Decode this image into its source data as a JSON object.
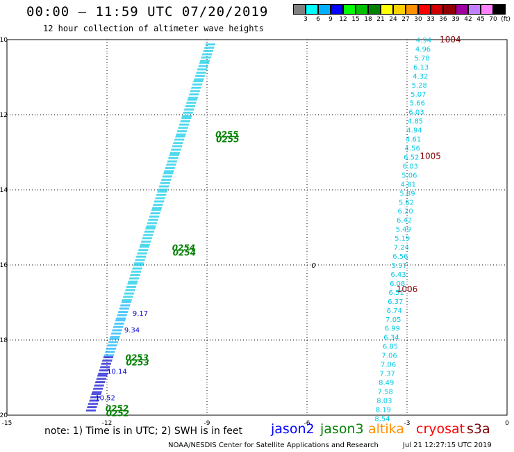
{
  "header": {
    "title": "00:00 — 11:59 UTC 07/20/2019",
    "subtitle": "12 hour collection of altimeter wave heights"
  },
  "legend": {
    "unit": "(ft)",
    "items": [
      {
        "label": "3",
        "color": "#808080"
      },
      {
        "label": "6",
        "color": "#00ffff"
      },
      {
        "label": "9",
        "color": "#00b0ff"
      },
      {
        "label": "12",
        "color": "#0000ff"
      },
      {
        "label": "15",
        "color": "#00ff00"
      },
      {
        "label": "18",
        "color": "#00c000"
      },
      {
        "label": "21",
        "color": "#008000"
      },
      {
        "label": "24",
        "color": "#ffff00"
      },
      {
        "label": "27",
        "color": "#ffd000"
      },
      {
        "label": "30",
        "color": "#ff9000"
      },
      {
        "label": "33",
        "color": "#ff0000"
      },
      {
        "label": "36",
        "color": "#d00000"
      },
      {
        "label": "39",
        "color": "#900000"
      },
      {
        "label": "42",
        "color": "#a000a0"
      },
      {
        "label": "45",
        "color": "#c080ff"
      },
      {
        "label": "70",
        "color": "#ff80ff"
      },
      {
        "label": "",
        "color": "#000000"
      }
    ]
  },
  "map": {
    "lon_range": [
      -15,
      0
    ],
    "lat_range": [
      -20,
      -10
    ],
    "lon_ticks": [
      "-15",
      "-12",
      "-9",
      "-6",
      "-3",
      "0"
    ],
    "lat_ticks": [
      "-10",
      "-12",
      "-14",
      "-16",
      "-18",
      "-20"
    ],
    "track_a": [
      {
        "lat": -10.1,
        "lon": -8.9
      },
      {
        "lat": -19.9,
        "lon": -12.5
      }
    ],
    "track_b_labels": [
      {
        "lat": -10.0,
        "lon": -2.5,
        "value": "4.94"
      },
      {
        "lat": -10.24,
        "lon": -2.52,
        "value": "4.96"
      },
      {
        "lat": -10.48,
        "lon": -2.55,
        "value": "5.78"
      },
      {
        "lat": -10.72,
        "lon": -2.58,
        "value": "6.13"
      },
      {
        "lat": -10.96,
        "lon": -2.6,
        "value": "4.32"
      },
      {
        "lat": -11.2,
        "lon": -2.63,
        "value": "5.28"
      },
      {
        "lat": -11.44,
        "lon": -2.66,
        "value": "5.07"
      },
      {
        "lat": -11.68,
        "lon": -2.69,
        "value": "5.66"
      },
      {
        "lat": -11.92,
        "lon": -2.72,
        "value": "6.03"
      },
      {
        "lat": -12.16,
        "lon": -2.75,
        "value": "4.85"
      },
      {
        "lat": -12.4,
        "lon": -2.78,
        "value": "4.94"
      },
      {
        "lat": -12.64,
        "lon": -2.81,
        "value": "4.61"
      },
      {
        "lat": -12.88,
        "lon": -2.84,
        "value": "4.56"
      },
      {
        "lat": -13.12,
        "lon": -2.87,
        "value": "6.52"
      },
      {
        "lat": -13.36,
        "lon": -2.9,
        "value": "6.03"
      },
      {
        "lat": -13.6,
        "lon": -2.93,
        "value": "5.06"
      },
      {
        "lat": -13.84,
        "lon": -2.96,
        "value": "4.81"
      },
      {
        "lat": -14.08,
        "lon": -2.99,
        "value": "5.89"
      },
      {
        "lat": -14.32,
        "lon": -3.02,
        "value": "5.62"
      },
      {
        "lat": -14.56,
        "lon": -3.05,
        "value": "6.20"
      },
      {
        "lat": -14.8,
        "lon": -3.08,
        "value": "6.42"
      },
      {
        "lat": -15.04,
        "lon": -3.11,
        "value": "5.49"
      },
      {
        "lat": -15.28,
        "lon": -3.14,
        "value": "5.19"
      },
      {
        "lat": -15.52,
        "lon": -3.17,
        "value": "7.24"
      },
      {
        "lat": -15.76,
        "lon": -3.2,
        "value": "6.56"
      },
      {
        "lat": -16.0,
        "lon": -3.23,
        "value": "5.97"
      },
      {
        "lat": -16.24,
        "lon": -3.26,
        "value": "6.43"
      },
      {
        "lat": -16.48,
        "lon": -3.29,
        "value": "6.08"
      },
      {
        "lat": -16.72,
        "lon": -3.32,
        "value": "6.51"
      },
      {
        "lat": -16.96,
        "lon": -3.35,
        "value": "6.37"
      },
      {
        "lat": -17.2,
        "lon": -3.38,
        "value": "6.74"
      },
      {
        "lat": -17.44,
        "lon": -3.41,
        "value": "7.05"
      },
      {
        "lat": -17.68,
        "lon": -3.44,
        "value": "6.99"
      },
      {
        "lat": -17.92,
        "lon": -3.47,
        "value": "6.34"
      },
      {
        "lat": -18.16,
        "lon": -3.5,
        "value": "6.85"
      },
      {
        "lat": -18.4,
        "lon": -3.53,
        "value": "7.06"
      },
      {
        "lat": -18.64,
        "lon": -3.56,
        "value": "7.06"
      },
      {
        "lat": -18.88,
        "lon": -3.59,
        "value": "7.37"
      },
      {
        "lat": -19.12,
        "lon": -3.62,
        "value": "8.49"
      },
      {
        "lat": -19.36,
        "lon": -3.65,
        "value": "7.58"
      },
      {
        "lat": -19.6,
        "lon": -3.68,
        "value": "8.03"
      },
      {
        "lat": -19.84,
        "lon": -3.71,
        "value": "8.19"
      },
      {
        "lat": -20.08,
        "lon": -3.74,
        "value": "8.54"
      }
    ],
    "track_b_color": "#00c8e6",
    "track_a_colors": [
      "#00c8e6",
      "#00b0ff",
      "#0000d0"
    ],
    "track_a_labels": [
      {
        "lat": -17.35,
        "lon": -11.0,
        "value": "9.17"
      },
      {
        "lat": -17.8,
        "lon": -11.25,
        "value": "9.34"
      },
      {
        "lat": -18.9,
        "lon": -11.7,
        "value": "10.14"
      },
      {
        "lat": -19.6,
        "lon": -12.05,
        "value": "10.52"
      }
    ],
    "time_labels": [
      {
        "lat": -12.6,
        "lon": -8.4,
        "value": "0255"
      },
      {
        "lat": -15.62,
        "lon": -9.7,
        "value": "0254"
      },
      {
        "lat": -18.55,
        "lon": -11.1,
        "value": "0253"
      },
      {
        "lat": -19.9,
        "lon": -11.7,
        "value": "0252"
      }
    ],
    "time_label_color": "#008000",
    "pressure_labels": [
      {
        "lat": -10.0,
        "lon": -1.7,
        "value": "1004"
      },
      {
        "lat": -13.1,
        "lon": -2.3,
        "value": "1005"
      },
      {
        "lat": -16.65,
        "lon": -3.0,
        "value": "1006"
      }
    ],
    "pressure_color": "#800000",
    "marker_label": {
      "lat": -16.0,
      "lon": -5.8,
      "value": "0"
    }
  },
  "footer": {
    "note": "note: 1) Time is in UTC; 2) SWH is in feet",
    "satellites": [
      {
        "label": "jason2",
        "color": "#0000ff"
      },
      {
        "label": "jason3",
        "color": "#008000"
      },
      {
        "label": "altika",
        "color": "#ff9000"
      },
      {
        "label": "cryosat",
        "color": "#ff0000"
      },
      {
        "label": "s3a",
        "color": "#800000"
      }
    ],
    "credit": "NOAA/NESDIS Center for Satellite Applications and Research",
    "timestamp": "Jul 21 12:27:15 UTC 2019"
  }
}
